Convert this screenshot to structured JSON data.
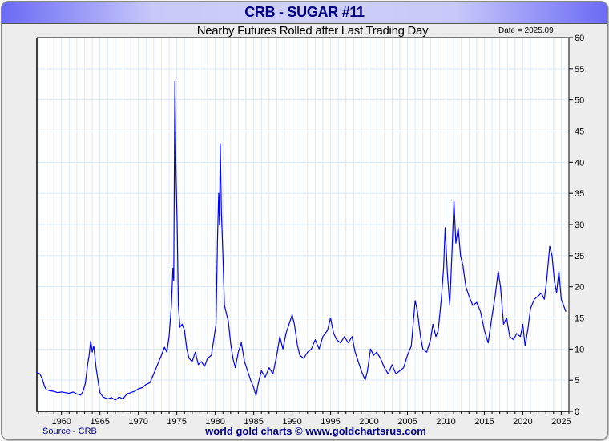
{
  "chart_data": {
    "type": "line",
    "title": "CRB - SUGAR #11",
    "subtitle": "Nearby Futures Rolled after Last Trading Day",
    "date_label": "Date = 2025.09",
    "source": "Source - CRB",
    "credit": "world gold charts © www.goldchartsrus.com",
    "xlim": [
      1956.8,
      2026.0
    ],
    "ylim": [
      0,
      60
    ],
    "xticks": [
      1960,
      1965,
      1970,
      1975,
      1980,
      1985,
      1990,
      1995,
      2000,
      2005,
      2010,
      2015,
      2020,
      2025
    ],
    "yticks": [
      0,
      5,
      10,
      15,
      20,
      25,
      30,
      35,
      40,
      45,
      50,
      55,
      60
    ],
    "grid": true,
    "series": [
      {
        "name": "Sugar #11",
        "color": "#0000ff",
        "points": [
          [
            1956.8,
            6.3
          ],
          [
            1957.2,
            6.0
          ],
          [
            1957.5,
            5.2
          ],
          [
            1957.8,
            4.0
          ],
          [
            1958.0,
            3.5
          ],
          [
            1958.5,
            3.3
          ],
          [
            1959,
            3.2
          ],
          [
            1959.5,
            3.0
          ],
          [
            1960,
            3.1
          ],
          [
            1960.5,
            3.0
          ],
          [
            1961,
            2.9
          ],
          [
            1961.5,
            3.1
          ],
          [
            1962,
            2.8
          ],
          [
            1962.5,
            2.6
          ],
          [
            1962.8,
            3.2
          ],
          [
            1963.1,
            4.5
          ],
          [
            1963.4,
            7.5
          ],
          [
            1963.6,
            9.0
          ],
          [
            1963.8,
            11.3
          ],
          [
            1964.0,
            9.5
          ],
          [
            1964.2,
            10.5
          ],
          [
            1964.5,
            7.0
          ],
          [
            1964.8,
            4.5
          ],
          [
            1965.0,
            3.0
          ],
          [
            1965.4,
            2.3
          ],
          [
            1966,
            2.0
          ],
          [
            1966.5,
            2.2
          ],
          [
            1967,
            1.8
          ],
          [
            1967.5,
            2.3
          ],
          [
            1968,
            2.0
          ],
          [
            1968.5,
            2.8
          ],
          [
            1969,
            3.0
          ],
          [
            1969.5,
            3.2
          ],
          [
            1970,
            3.6
          ],
          [
            1970.5,
            3.8
          ],
          [
            1971,
            4.3
          ],
          [
            1971.5,
            4.6
          ],
          [
            1972,
            6.0
          ],
          [
            1972.5,
            7.5
          ],
          [
            1973,
            9.0
          ],
          [
            1973.4,
            10.3
          ],
          [
            1973.7,
            9.5
          ],
          [
            1974.0,
            12.0
          ],
          [
            1974.3,
            17.0
          ],
          [
            1974.5,
            23.0
          ],
          [
            1974.6,
            21.0
          ],
          [
            1974.75,
            53.0
          ],
          [
            1974.9,
            38.0
          ],
          [
            1975.05,
            30.0
          ],
          [
            1975.2,
            17.0
          ],
          [
            1975.4,
            13.5
          ],
          [
            1975.7,
            14.0
          ],
          [
            1976,
            13.0
          ],
          [
            1976.3,
            10.0
          ],
          [
            1976.6,
            8.5
          ],
          [
            1977,
            8.0
          ],
          [
            1977.4,
            9.5
          ],
          [
            1977.8,
            7.5
          ],
          [
            1978.2,
            8.0
          ],
          [
            1978.6,
            7.2
          ],
          [
            1979,
            8.5
          ],
          [
            1979.5,
            9.0
          ],
          [
            1979.8,
            11.5
          ],
          [
            1980.1,
            14.0
          ],
          [
            1980.3,
            28.0
          ],
          [
            1980.45,
            35.0
          ],
          [
            1980.55,
            30.0
          ],
          [
            1980.66,
            43.0
          ],
          [
            1980.8,
            32.0
          ],
          [
            1981.0,
            25.0
          ],
          [
            1981.2,
            17.0
          ],
          [
            1981.4,
            16.0
          ],
          [
            1981.7,
            14.5
          ],
          [
            1982,
            11.0
          ],
          [
            1982.3,
            8.5
          ],
          [
            1982.6,
            7.0
          ],
          [
            1983,
            9.5
          ],
          [
            1983.4,
            11.0
          ],
          [
            1983.8,
            8.0
          ],
          [
            1984.2,
            6.5
          ],
          [
            1984.6,
            5.0
          ],
          [
            1985.0,
            3.8
          ],
          [
            1985.3,
            2.5
          ],
          [
            1985.6,
            4.5
          ],
          [
            1986,
            6.5
          ],
          [
            1986.5,
            5.5
          ],
          [
            1987,
            7.0
          ],
          [
            1987.5,
            6.0
          ],
          [
            1988,
            9.0
          ],
          [
            1988.4,
            12.0
          ],
          [
            1988.8,
            10.0
          ],
          [
            1989.2,
            12.5
          ],
          [
            1989.6,
            14.0
          ],
          [
            1990.0,
            15.5
          ],
          [
            1990.3,
            14.0
          ],
          [
            1990.7,
            10.5
          ],
          [
            1991,
            9.0
          ],
          [
            1991.5,
            8.5
          ],
          [
            1992,
            9.5
          ],
          [
            1992.5,
            10.0
          ],
          [
            1993,
            11.5
          ],
          [
            1993.5,
            10.0
          ],
          [
            1994,
            12.0
          ],
          [
            1994.6,
            13.0
          ],
          [
            1995.0,
            15.0
          ],
          [
            1995.4,
            12.5
          ],
          [
            1995.8,
            11.5
          ],
          [
            1996.3,
            11.0
          ],
          [
            1996.8,
            12.0
          ],
          [
            1997.3,
            11.0
          ],
          [
            1997.8,
            12.0
          ],
          [
            1998.2,
            9.5
          ],
          [
            1998.6,
            8.0
          ],
          [
            1999,
            6.5
          ],
          [
            1999.5,
            5.0
          ],
          [
            1999.8,
            6.5
          ],
          [
            2000.2,
            10.0
          ],
          [
            2000.6,
            9.0
          ],
          [
            2001,
            9.5
          ],
          [
            2001.5,
            8.5
          ],
          [
            2002,
            7.0
          ],
          [
            2002.5,
            6.0
          ],
          [
            2003,
            7.5
          ],
          [
            2003.5,
            6.0
          ],
          [
            2004,
            6.5
          ],
          [
            2004.5,
            7.0
          ],
          [
            2005,
            9.0
          ],
          [
            2005.5,
            10.5
          ],
          [
            2006.0,
            17.8
          ],
          [
            2006.3,
            16.0
          ],
          [
            2006.7,
            12.0
          ],
          [
            2007,
            10.0
          ],
          [
            2007.5,
            9.5
          ],
          [
            2008,
            11.5
          ],
          [
            2008.3,
            14.0
          ],
          [
            2008.7,
            12.0
          ],
          [
            2009.0,
            13.0
          ],
          [
            2009.4,
            18.0
          ],
          [
            2009.7,
            23.0
          ],
          [
            2009.9,
            29.5
          ],
          [
            2010.2,
            22.0
          ],
          [
            2010.5,
            17.0
          ],
          [
            2010.8,
            26.0
          ],
          [
            2011.05,
            33.8
          ],
          [
            2011.3,
            27.0
          ],
          [
            2011.6,
            29.5
          ],
          [
            2011.9,
            25.0
          ],
          [
            2012.2,
            23.5
          ],
          [
            2012.6,
            20.0
          ],
          [
            2013,
            18.5
          ],
          [
            2013.5,
            17.0
          ],
          [
            2014,
            17.5
          ],
          [
            2014.5,
            16.0
          ],
          [
            2015,
            13.0
          ],
          [
            2015.5,
            11.0
          ],
          [
            2015.9,
            14.5
          ],
          [
            2016.4,
            18.5
          ],
          [
            2016.8,
            22.5
          ],
          [
            2017.1,
            20.0
          ],
          [
            2017.5,
            14.0
          ],
          [
            2017.9,
            15.0
          ],
          [
            2018.3,
            12.0
          ],
          [
            2018.8,
            11.5
          ],
          [
            2019.2,
            12.5
          ],
          [
            2019.7,
            12.0
          ],
          [
            2020.0,
            14.0
          ],
          [
            2020.3,
            10.5
          ],
          [
            2020.7,
            13.5
          ],
          [
            2021,
            16.5
          ],
          [
            2021.5,
            18.0
          ],
          [
            2022,
            18.5
          ],
          [
            2022.4,
            19.0
          ],
          [
            2022.8,
            18.0
          ],
          [
            2023.1,
            21.0
          ],
          [
            2023.5,
            26.5
          ],
          [
            2023.8,
            25.0
          ],
          [
            2024.1,
            21.0
          ],
          [
            2024.4,
            19.0
          ],
          [
            2024.7,
            22.5
          ],
          [
            2025.0,
            18.0
          ],
          [
            2025.3,
            17.0
          ],
          [
            2025.6,
            16.0
          ]
        ]
      }
    ]
  }
}
